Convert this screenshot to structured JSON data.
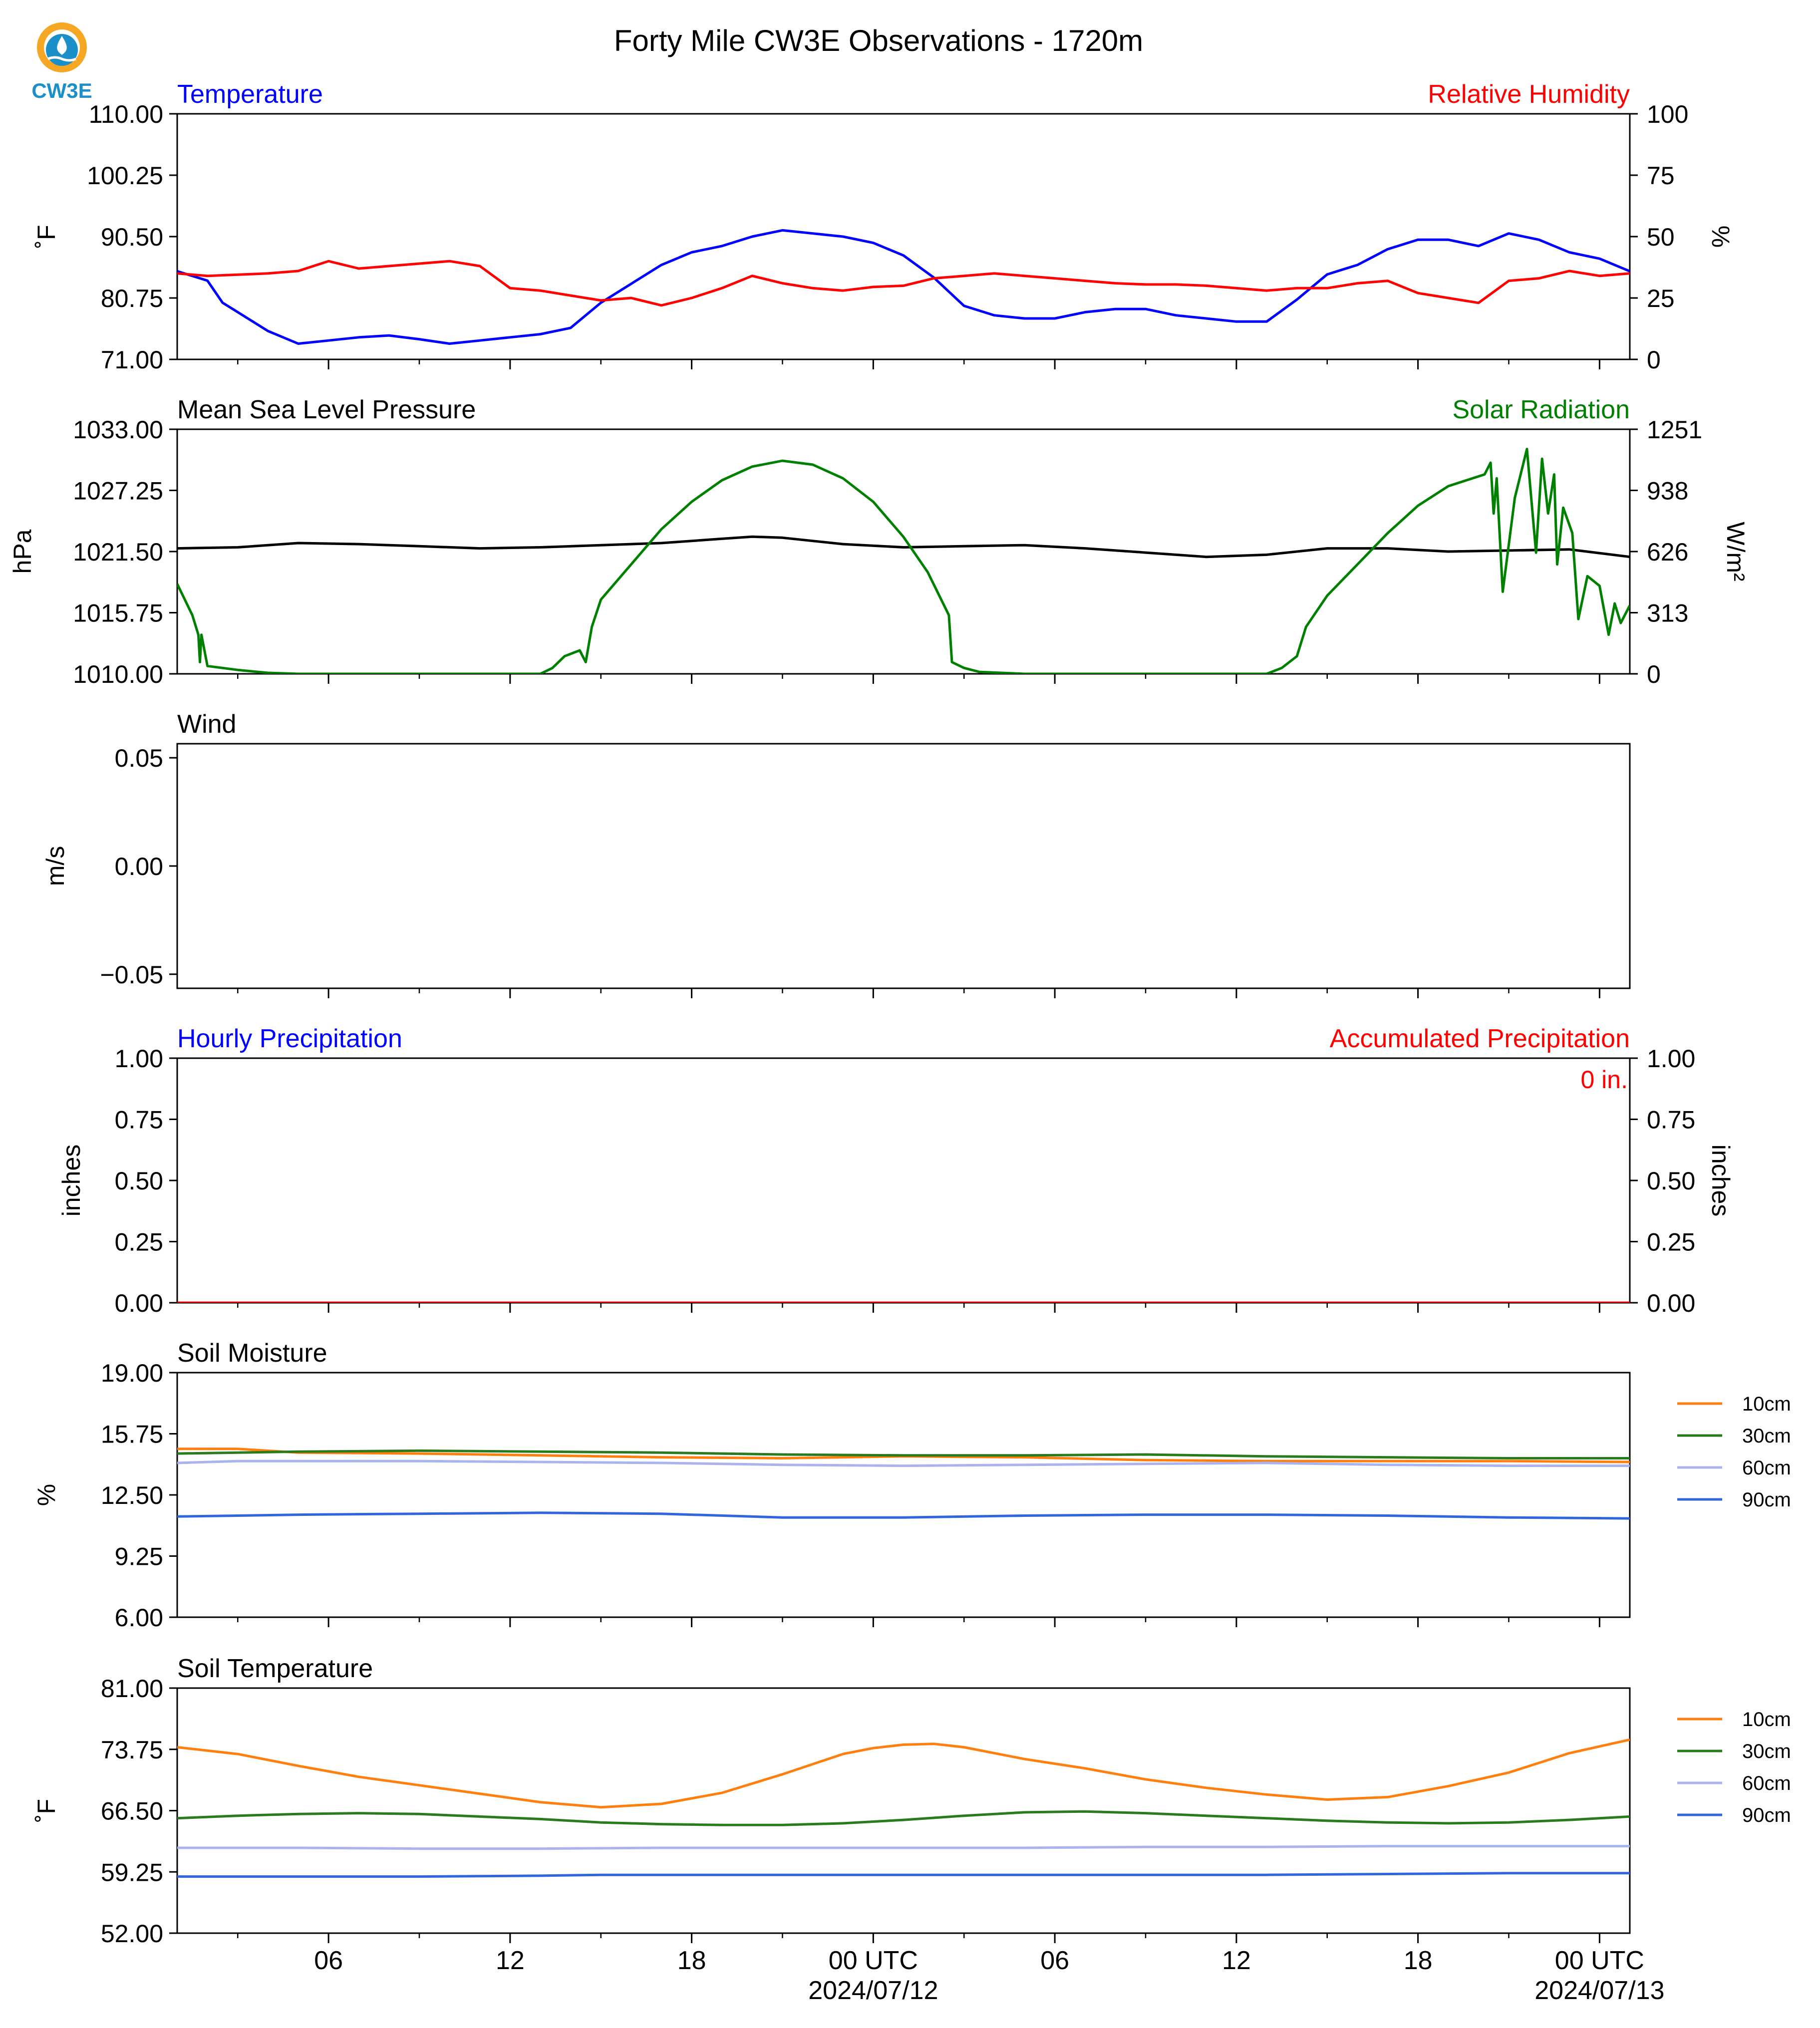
{
  "title": "Forty Mile CW3E Observations - 1720m",
  "logo": {
    "text": "CW3E",
    "colors": {
      "orange": "#f5a623",
      "blue": "#1b8fc7",
      "dark": "#135d8a"
    }
  },
  "colors": {
    "blue": "#0000ff",
    "red": "#ff0000",
    "black": "#000000",
    "green": "#008000",
    "soil10": "#ff7f0e",
    "soil30": "#2a7a1e",
    "soil60": "#a9b4ee",
    "soil90": "#2f66e0"
  },
  "x_axis": {
    "ticks": [
      "06",
      "12",
      "18",
      "00 UTC",
      "06",
      "12",
      "18",
      "00 UTC"
    ],
    "dates": [
      "2024/07/12",
      "2024/07/13"
    ]
  },
  "chart_data": [
    {
      "id": "temp_rh",
      "type": "line",
      "left_title": "Temperature",
      "right_title": "Relative Humidity",
      "left_unit": "˚F",
      "right_unit": "%",
      "left_ticks": [
        "110.00",
        "100.25",
        "90.50",
        "80.75",
        "71.00"
      ],
      "left_range": [
        71.0,
        110.0
      ],
      "right_ticks": [
        "100",
        "75",
        "50",
        "25",
        "0"
      ],
      "right_range": [
        0,
        100
      ],
      "x_range_hours": [
        0,
        48
      ],
      "series": [
        {
          "name": "Temperature",
          "axis": "left",
          "color": "#0000ff",
          "x": [
            0,
            1,
            1.5,
            2,
            3,
            4,
            5,
            6,
            7,
            8,
            9,
            10,
            11,
            12,
            13,
            14,
            15,
            16,
            17,
            18,
            19,
            20,
            21,
            22,
            23,
            24,
            25,
            26,
            27,
            28,
            29,
            30,
            31,
            32,
            33,
            34,
            35,
            36,
            37,
            38,
            39,
            40,
            41,
            42,
            43,
            44,
            45,
            46,
            47,
            48
          ],
          "y": [
            85,
            83.5,
            80,
            78.5,
            75.5,
            73.5,
            74,
            74.5,
            74.8,
            74.2,
            73.5,
            74,
            74.5,
            75,
            76,
            80,
            83,
            86,
            88,
            89,
            90.5,
            91.5,
            91,
            90.5,
            89.5,
            87.5,
            84,
            79.5,
            78,
            77.5,
            77.5,
            78.5,
            79,
            79,
            78,
            77.5,
            77,
            77,
            80.5,
            84.5,
            86,
            88.5,
            90,
            90,
            89,
            91,
            90,
            88,
            87,
            85
          ]
        },
        {
          "name": "Relative Humidity",
          "axis": "right",
          "color": "#ff0000",
          "x": [
            0,
            1,
            2,
            3,
            4,
            5,
            6,
            7,
            8,
            9,
            10,
            11,
            12,
            13,
            14,
            15,
            16,
            17,
            18,
            19,
            20,
            21,
            22,
            23,
            24,
            25,
            26,
            27,
            28,
            29,
            30,
            31,
            32,
            33,
            34,
            35,
            36,
            37,
            38,
            39,
            40,
            41,
            42,
            43,
            44,
            45,
            46,
            47,
            48
          ],
          "y": [
            35,
            34,
            34.5,
            35,
            36,
            40,
            37,
            38,
            39,
            40,
            38,
            29,
            28,
            26,
            24,
            25,
            22,
            25,
            29,
            34,
            31,
            29,
            28,
            29.5,
            30,
            33,
            34,
            35,
            34,
            33,
            32,
            31,
            30.5,
            30.5,
            30,
            29,
            28,
            29,
            29,
            31,
            32,
            27,
            25,
            23,
            32,
            33,
            36,
            34,
            35
          ]
        }
      ]
    },
    {
      "id": "pressure_solar",
      "type": "line",
      "left_title": "Mean Sea Level Pressure",
      "right_title": "Solar Radiation",
      "left_unit": "hPa",
      "right_unit": "W/m²",
      "left_ticks": [
        "1033.00",
        "1027.25",
        "1021.50",
        "1015.75",
        "1010.00"
      ],
      "left_range": [
        1010.0,
        1033.0
      ],
      "right_ticks": [
        "1251",
        "938",
        "626",
        "313",
        "0"
      ],
      "right_range": [
        0,
        1251
      ],
      "x_range_hours": [
        0,
        48
      ],
      "series": [
        {
          "name": "Mean Sea Level Pressure",
          "axis": "left",
          "color": "#000000",
          "x": [
            0,
            2,
            4,
            6,
            8,
            10,
            12,
            14,
            16,
            18,
            19,
            20,
            22,
            24,
            26,
            28,
            30,
            32,
            34,
            36,
            38,
            40,
            42,
            44,
            46,
            48
          ],
          "y": [
            1021.8,
            1021.9,
            1022.3,
            1022.2,
            1022.0,
            1021.8,
            1021.9,
            1022.1,
            1022.3,
            1022.7,
            1022.9,
            1022.8,
            1022.2,
            1021.9,
            1022.0,
            1022.1,
            1021.8,
            1021.4,
            1021.0,
            1021.2,
            1021.8,
            1021.8,
            1021.5,
            1021.6,
            1021.7,
            1021.0
          ]
        },
        {
          "name": "Solar Radiation",
          "axis": "right",
          "color": "#008000",
          "x": [
            0,
            0.5,
            0.7,
            0.75,
            0.8,
            1,
            2,
            3,
            4,
            12,
            12.4,
            12.8,
            13.3,
            13.5,
            13.7,
            14,
            15,
            16,
            17,
            18,
            19,
            20,
            21,
            22,
            23,
            24,
            24.8,
            25.5,
            25.6,
            26,
            26.5,
            28,
            36,
            36.5,
            37,
            37.3,
            38,
            39,
            40,
            41,
            42,
            43.2,
            43.4,
            43.5,
            43.6,
            43.8,
            44.2,
            44.6,
            44.9,
            45.1,
            45.3,
            45.5,
            45.6,
            45.8,
            46.1,
            46.3,
            46.6,
            47,
            47.3,
            47.5,
            47.7,
            48
          ],
          "y": [
            460,
            300,
            200,
            60,
            200,
            40,
            20,
            5,
            0,
            0,
            30,
            90,
            120,
            60,
            240,
            380,
            560,
            740,
            880,
            990,
            1060,
            1090,
            1070,
            1000,
            880,
            700,
            520,
            300,
            60,
            30,
            10,
            0,
            0,
            30,
            90,
            240,
            400,
            560,
            720,
            860,
            960,
            1020,
            1080,
            820,
            1000,
            420,
            900,
            1150,
            620,
            1100,
            820,
            1020,
            560,
            850,
            720,
            280,
            500,
            450,
            200,
            360,
            260,
            350
          ]
        }
      ]
    },
    {
      "id": "wind",
      "type": "line",
      "left_title": "Wind",
      "left_unit": "m/s",
      "left_ticks": [
        "0.05",
        "0.00",
        "−0.05"
      ],
      "left_tick_values": [
        0.05,
        0.0,
        -0.05
      ],
      "left_range": [
        -0.0565,
        0.0565
      ],
      "series": []
    },
    {
      "id": "precip",
      "type": "line",
      "left_title": "Hourly Precipitation",
      "right_title": "Accumulated Precipitation",
      "left_unit": "inches",
      "right_unit": "inches",
      "annotation": "0 in.",
      "left_ticks": [
        "1.00",
        "0.75",
        "0.50",
        "0.25",
        "0.00"
      ],
      "left_range": [
        0,
        1
      ],
      "right_ticks": [
        "1.00",
        "0.75",
        "0.50",
        "0.25",
        "0.00"
      ],
      "right_range": [
        0,
        1
      ],
      "x_range_hours": [
        0,
        48
      ],
      "series": [
        {
          "name": "Accumulated Precipitation",
          "axis": "right",
          "color": "#ff0000",
          "x": [
            0,
            48
          ],
          "y": [
            0,
            0
          ]
        }
      ]
    },
    {
      "id": "soil_moisture",
      "type": "line",
      "left_title": "Soil Moisture",
      "left_unit": "%",
      "left_ticks": [
        "19.00",
        "15.75",
        "12.50",
        "9.25",
        "6.00"
      ],
      "left_range": [
        6.0,
        19.0
      ],
      "x_range_hours": [
        0,
        48
      ],
      "legend": [
        "10cm",
        "30cm",
        "60cm",
        "90cm"
      ],
      "series": [
        {
          "name": "10cm",
          "color": "#ff7f0e",
          "x": [
            0,
            2,
            4,
            8,
            12,
            16,
            20,
            24,
            28,
            32,
            36,
            40,
            44,
            48
          ],
          "y": [
            14.95,
            14.95,
            14.75,
            14.7,
            14.6,
            14.5,
            14.45,
            14.55,
            14.5,
            14.35,
            14.3,
            14.3,
            14.3,
            14.25
          ]
        },
        {
          "name": "30cm",
          "color": "#2a7a1e",
          "x": [
            0,
            2,
            4,
            8,
            12,
            16,
            20,
            24,
            28,
            32,
            36,
            40,
            44,
            48
          ],
          "y": [
            14.7,
            14.75,
            14.8,
            14.85,
            14.8,
            14.75,
            14.65,
            14.6,
            14.6,
            14.65,
            14.55,
            14.5,
            14.45,
            14.45
          ]
        },
        {
          "name": "60cm",
          "color": "#a9b4ee",
          "x": [
            0,
            2,
            4,
            8,
            12,
            16,
            20,
            24,
            28,
            32,
            36,
            40,
            44,
            48
          ],
          "y": [
            14.2,
            14.3,
            14.3,
            14.3,
            14.25,
            14.2,
            14.1,
            14.05,
            14.1,
            14.15,
            14.2,
            14.1,
            14.05,
            14.05
          ]
        },
        {
          "name": "90cm",
          "color": "#2f66e0",
          "x": [
            0,
            2,
            4,
            8,
            12,
            16,
            20,
            24,
            28,
            32,
            36,
            40,
            44,
            48
          ],
          "y": [
            11.35,
            11.4,
            11.45,
            11.5,
            11.55,
            11.5,
            11.3,
            11.3,
            11.4,
            11.45,
            11.45,
            11.4,
            11.3,
            11.25
          ]
        }
      ]
    },
    {
      "id": "soil_temp",
      "type": "line",
      "left_title": "Soil Temperature",
      "left_unit": "˚F",
      "left_ticks": [
        "81.00",
        "73.75",
        "66.50",
        "59.25",
        "52.00"
      ],
      "left_range": [
        52.0,
        81.0
      ],
      "x_range_hours": [
        0,
        48
      ],
      "legend": [
        "10cm",
        "30cm",
        "60cm",
        "90cm"
      ],
      "series": [
        {
          "name": "10cm",
          "color": "#ff7f0e",
          "x": [
            0,
            2,
            4,
            6,
            8,
            10,
            12,
            14,
            16,
            18,
            20,
            22,
            23,
            24,
            25,
            26,
            28,
            30,
            32,
            34,
            36,
            38,
            40,
            42,
            44,
            46,
            48
          ],
          "y": [
            74,
            73.2,
            71.8,
            70.5,
            69.5,
            68.5,
            67.5,
            66.9,
            67.3,
            68.6,
            70.8,
            73.2,
            73.9,
            74.3,
            74.4,
            74.0,
            72.6,
            71.5,
            70.2,
            69.2,
            68.4,
            67.8,
            68.1,
            69.4,
            71,
            73.3,
            74.9
          ]
        },
        {
          "name": "30cm",
          "color": "#2a7a1e",
          "x": [
            0,
            2,
            4,
            6,
            8,
            10,
            12,
            14,
            16,
            18,
            20,
            22,
            24,
            26,
            28,
            30,
            32,
            34,
            36,
            38,
            40,
            42,
            44,
            46,
            48
          ],
          "y": [
            65.6,
            65.9,
            66.1,
            66.2,
            66.1,
            65.8,
            65.5,
            65.1,
            64.9,
            64.8,
            64.8,
            65.0,
            65.4,
            65.9,
            66.3,
            66.4,
            66.2,
            65.9,
            65.6,
            65.3,
            65.1,
            65.0,
            65.1,
            65.4,
            65.8
          ]
        },
        {
          "name": "60cm",
          "color": "#a9b4ee",
          "x": [
            0,
            4,
            8,
            12,
            16,
            20,
            24,
            28,
            32,
            36,
            40,
            44,
            48
          ],
          "y": [
            62.1,
            62.1,
            62.0,
            62.0,
            62.1,
            62.1,
            62.1,
            62.1,
            62.2,
            62.2,
            62.3,
            62.3,
            62.3
          ]
        },
        {
          "name": "90cm",
          "color": "#2f66e0",
          "x": [
            0,
            4,
            8,
            12,
            14,
            16,
            20,
            24,
            28,
            32,
            36,
            40,
            44,
            48
          ],
          "y": [
            58.7,
            58.7,
            58.7,
            58.8,
            58.9,
            58.9,
            58.9,
            58.9,
            58.9,
            58.9,
            58.9,
            59.0,
            59.1,
            59.1
          ]
        }
      ]
    }
  ]
}
